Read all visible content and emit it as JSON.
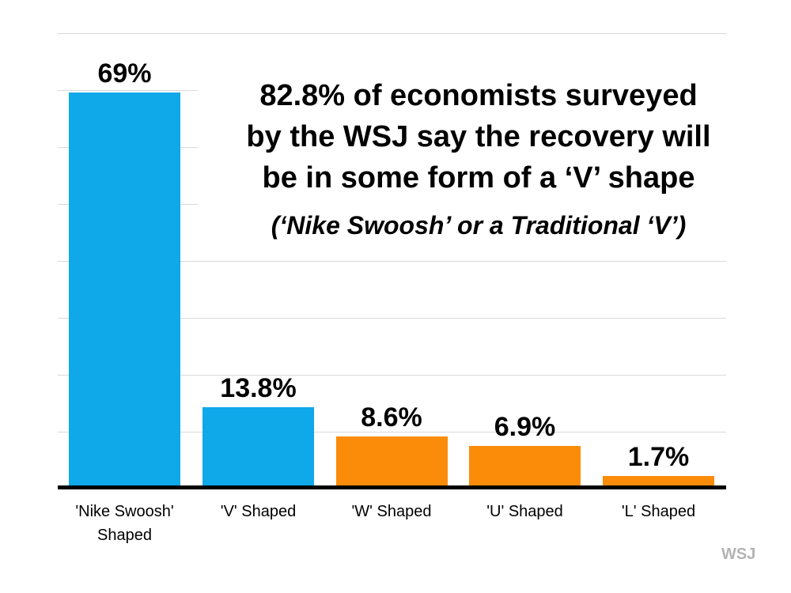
{
  "chart_data": {
    "type": "bar",
    "title": "82.8% of economists surveyed by the WSJ say the recovery will be in some form of a ‘V’ shape",
    "title_lines": [
      "82.8% of economists surveyed",
      "by the WSJ say the recovery will",
      "be in some form of a ‘V’ shape"
    ],
    "subtitle": "(‘Nike Swoosh’ or a Traditional ‘V’)",
    "categories": [
      "'Nike Swoosh' Shaped",
      "'V' Shaped",
      "'W' Shaped",
      "'U' Shaped",
      "'L' Shaped"
    ],
    "values": [
      69,
      13.8,
      8.6,
      6.9,
      1.7
    ],
    "value_labels": [
      "69%",
      "13.8%",
      "8.6%",
      "6.9%",
      "1.7%"
    ],
    "bar_colors": [
      "#0fa8e9",
      "#0fa8e9",
      "#fb8c09",
      "#fb8c09",
      "#fb8c09"
    ],
    "xlabel": "",
    "ylabel": "",
    "ylim": [
      0,
      80
    ],
    "gridline_step": 10,
    "grid": true,
    "legend": false,
    "colors": {
      "blue": "#0fa8e9",
      "orange": "#fb8c09",
      "gridline": "#d9d9d9",
      "axis": "#000000",
      "watermark": "#b3b3b3"
    }
  },
  "watermark": {
    "label": "WSJ"
  }
}
